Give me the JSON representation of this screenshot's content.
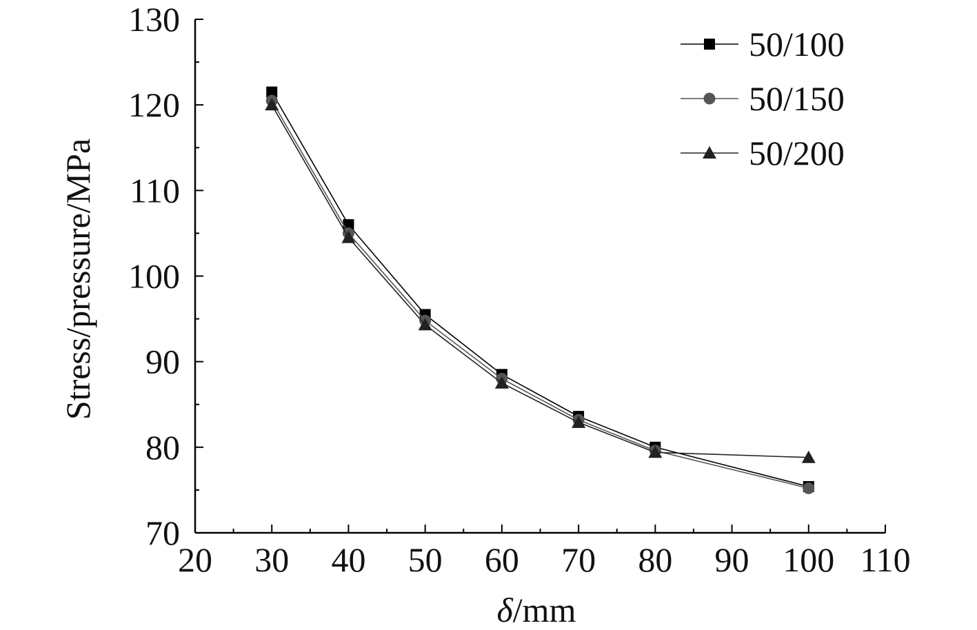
{
  "chart_data": {
    "type": "line",
    "xlabel": {
      "italic": "δ",
      "rest": "/mm"
    },
    "ylabel": "Stress/pressure/MPa",
    "xlim": [
      20,
      110
    ],
    "ylim": [
      70,
      130
    ],
    "xticks": [
      20,
      30,
      40,
      50,
      60,
      70,
      80,
      90,
      100,
      110
    ],
    "yticks": [
      70,
      80,
      90,
      100,
      110,
      120,
      130
    ],
    "grid": false,
    "legend_position": "top-right",
    "x": [
      30,
      40,
      50,
      60,
      70,
      80,
      100
    ],
    "series": [
      {
        "name": "50/100",
        "marker": "square",
        "color": "#000000",
        "values": [
          121.5,
          106.0,
          95.5,
          88.5,
          83.6,
          80.0,
          75.4
        ]
      },
      {
        "name": "50/150",
        "marker": "circle",
        "color": "#555555",
        "values": [
          120.5,
          105.0,
          94.8,
          88.0,
          83.2,
          79.6,
          75.2
        ]
      },
      {
        "name": "50/200",
        "marker": "triangle",
        "color": "#222222",
        "values": [
          120.0,
          104.5,
          94.3,
          87.5,
          82.9,
          79.4,
          78.8
        ]
      }
    ]
  }
}
